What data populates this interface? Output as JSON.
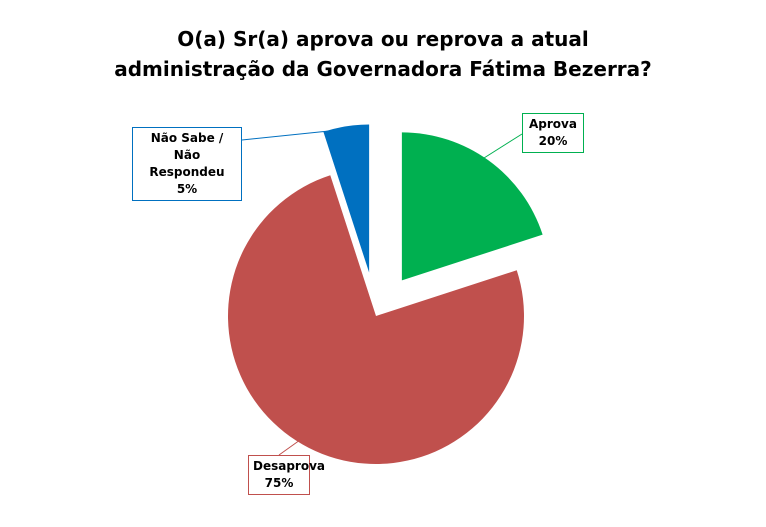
{
  "chart_data": {
    "type": "pie",
    "title": "O(a) Sr(a) aprova ou reprova a atual administração da Governadora Fátima Bezerra?",
    "categories": [
      "Aprova",
      "Desaprova",
      "Não Sabe / Não Respondeu"
    ],
    "values": [
      20,
      75,
      5
    ],
    "value_labels": [
      "20%",
      "75%",
      "5%"
    ],
    "colors": [
      "#00b050",
      "#c0504d",
      "#0070c0"
    ]
  }
}
